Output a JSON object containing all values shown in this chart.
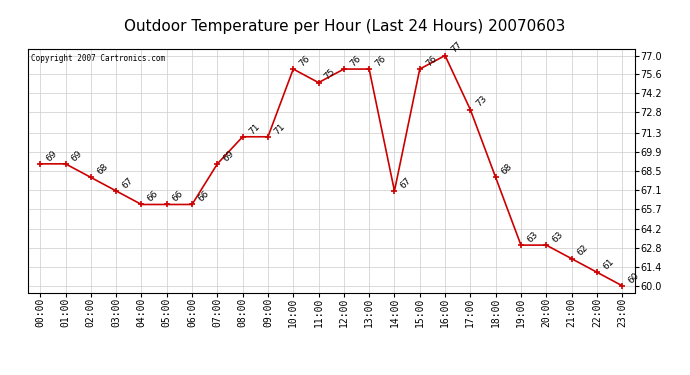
{
  "title": "Outdoor Temperature per Hour (Last 24 Hours) 20070603",
  "copyright_text": "Copyright 2007 Cartronics.com",
  "hours": [
    "00:00",
    "01:00",
    "02:00",
    "03:00",
    "04:00",
    "05:00",
    "06:00",
    "07:00",
    "08:00",
    "09:00",
    "10:00",
    "11:00",
    "12:00",
    "13:00",
    "14:00",
    "15:00",
    "16:00",
    "17:00",
    "18:00",
    "19:00",
    "20:00",
    "21:00",
    "22:00",
    "23:00"
  ],
  "temps": [
    69,
    69,
    68,
    67,
    66,
    66,
    66,
    69,
    71,
    71,
    76,
    75,
    76,
    76,
    67,
    76,
    77,
    73,
    68,
    63,
    63,
    62,
    61,
    60
  ],
  "line_color": "#cc0000",
  "marker_color": "#cc0000",
  "bg_color": "#ffffff",
  "grid_color": "#cccccc",
  "yticks": [
    60.0,
    61.4,
    62.8,
    64.2,
    65.7,
    67.1,
    68.5,
    69.9,
    71.3,
    72.8,
    74.2,
    75.6,
    77.0
  ],
  "ylim": [
    59.5,
    77.5
  ],
  "title_fontsize": 11,
  "label_fontsize": 7,
  "annotation_fontsize": 6.5
}
